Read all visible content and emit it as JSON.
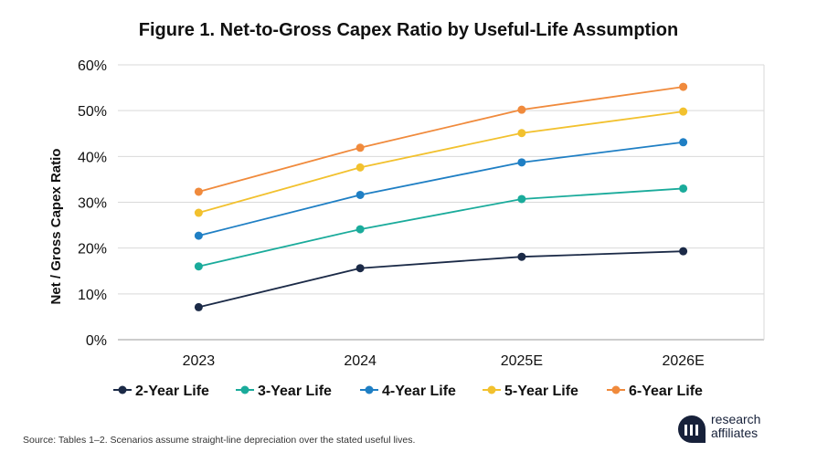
{
  "title": "Figure 1.  Net-to-Gross Capex Ratio by Useful-Life Assumption",
  "source": "Source: Tables 1–2. Scenarios assume straight-line depreciation over the stated useful lives.",
  "logo": {
    "line1": "research",
    "line2": "affiliates"
  },
  "chart_data": {
    "type": "line",
    "title": "Figure 1.  Net-to-Gross Capex Ratio by Useful-Life Assumption",
    "xlabel": "",
    "ylabel": "Net / Gross Capex Ratio",
    "categories": [
      "2023",
      "2024",
      "2025E",
      "2026E"
    ],
    "ylim": [
      0,
      60
    ],
    "yticks": [
      0,
      10,
      20,
      30,
      40,
      50,
      60
    ],
    "ytick_labels": [
      "0%",
      "10%",
      "20%",
      "30%",
      "40%",
      "50%",
      "60%"
    ],
    "grid": true,
    "legend_position": "bottom",
    "series": [
      {
        "name": "2-Year Life",
        "color": "#1b2a47",
        "values": [
          7.1,
          15.6,
          18.1,
          19.3
        ]
      },
      {
        "name": "3-Year Life",
        "color": "#1aab9b",
        "values": [
          16.0,
          24.1,
          30.7,
          33.0
        ]
      },
      {
        "name": "4-Year Life",
        "color": "#1f7fc4",
        "values": [
          22.7,
          31.6,
          38.7,
          43.1
        ]
      },
      {
        "name": "5-Year Life",
        "color": "#f2c12e",
        "values": [
          27.7,
          37.6,
          45.1,
          49.8
        ]
      },
      {
        "name": "6-Year Life",
        "color": "#f08a3c",
        "values": [
          32.3,
          41.9,
          50.2,
          55.2
        ]
      }
    ]
  }
}
